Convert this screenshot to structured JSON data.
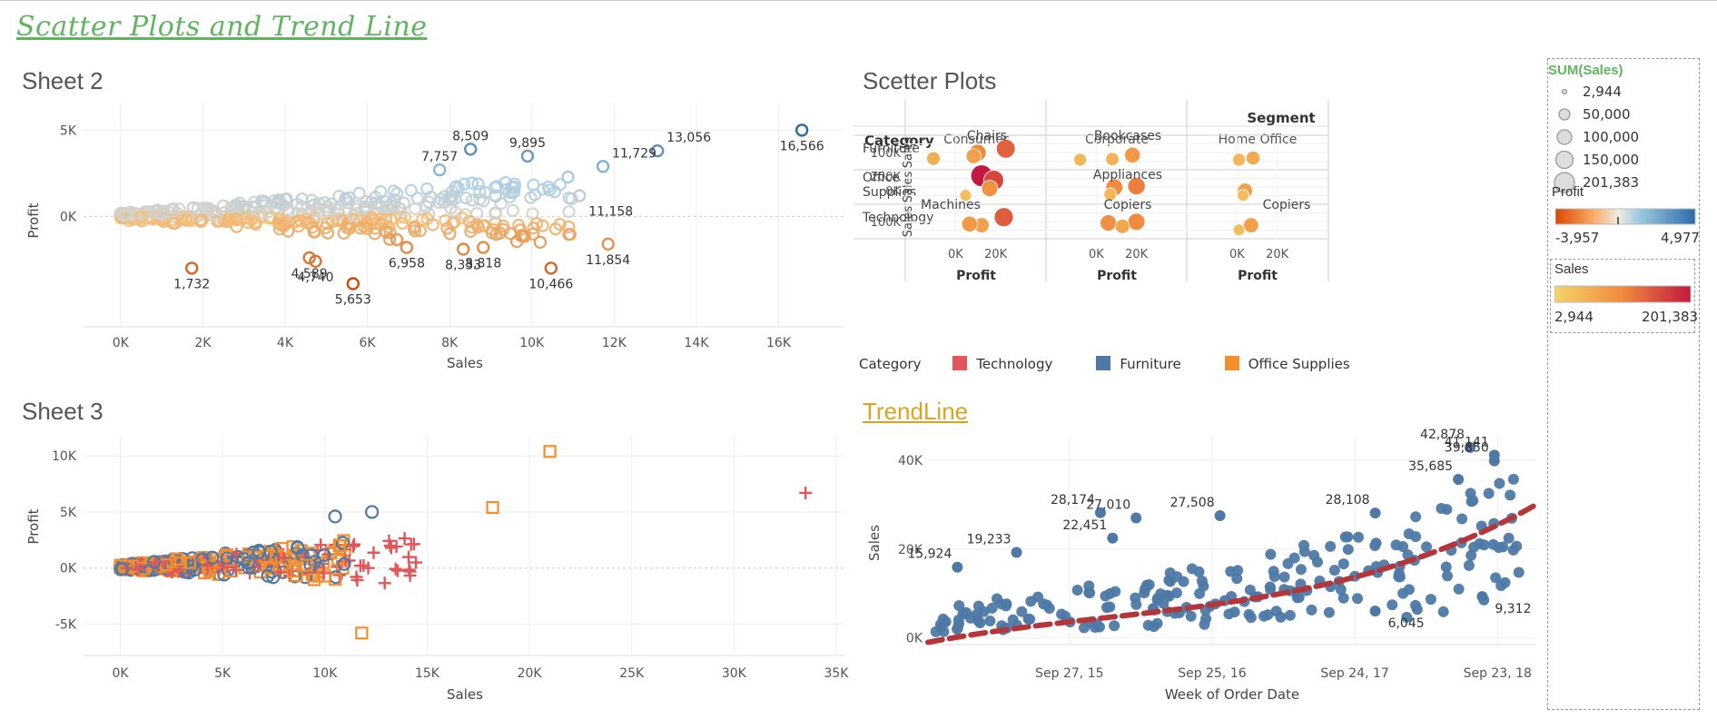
{
  "dashboard_title": "Scatter Plots and Trend Line",
  "sheet2": {
    "title": "Sheet 2",
    "xlabel": "Sales",
    "ylabel": "Profit",
    "x_ticks": [
      "0K",
      "2K",
      "4K",
      "6K",
      "8K",
      "10K",
      "12K",
      "14K",
      "16K"
    ],
    "y_ticks": [
      "5K",
      "0K"
    ]
  },
  "sheet3": {
    "title": "Sheet 3",
    "xlabel": "Sales",
    "ylabel": "Profit",
    "x_ticks": [
      "0K",
      "5K",
      "10K",
      "15K",
      "20K",
      "25K",
      "30K",
      "35K"
    ],
    "y_ticks": [
      "10K",
      "5K",
      "0K",
      "-5K"
    ]
  },
  "scatter_plots": {
    "title": "Scetter Plots",
    "segment_header": "Segment",
    "category_header": "Category",
    "segments": [
      "Consumer",
      "Corporate",
      "Home Office"
    ],
    "categories": [
      "Furniture",
      "Office\nSupplies",
      "Technology"
    ],
    "row_axis_label": "Sales",
    "col_axis_label": "Profit",
    "x_ticks": [
      "0K",
      "20K"
    ],
    "row_ticks": [
      [
        "100K"
      ],
      [
        "200K",
        "0K"
      ],
      [
        "100K"
      ]
    ],
    "annotations": [
      {
        "row": 0,
        "col": 0,
        "text": "Chairs"
      },
      {
        "row": 0,
        "col": 1,
        "text": "Bookcases"
      },
      {
        "row": 1,
        "col": 1,
        "text": "Appliances"
      },
      {
        "row": 2,
        "col": 0,
        "text": "Machines"
      },
      {
        "row": 2,
        "col": 1,
        "text": "Copiers"
      },
      {
        "row": 2,
        "col": 2,
        "text": "Copiers"
      }
    ]
  },
  "category_legend": {
    "title": "Category",
    "items": [
      {
        "label": "Technology",
        "color": "#e15759"
      },
      {
        "label": "Furniture",
        "color": "#4e79a7"
      },
      {
        "label": "Office Supplies",
        "color": "#f28e2b"
      }
    ]
  },
  "trendline": {
    "title": "TrendLine",
    "xlabel": "Week of Order Date",
    "ylabel": "Sales",
    "x_ticks": [
      "Sep 27, 15",
      "Sep 25, 16",
      "Sep 24, 17",
      "Sep 23, 18"
    ],
    "y_ticks": [
      "40K",
      "20K",
      "0K"
    ]
  },
  "legend_panel": {
    "size_title": "SUM(Sales)",
    "size_items": [
      "2,944",
      "50,000",
      "100,000",
      "150,000",
      "201,383"
    ],
    "profit_title": "Profit",
    "profit_min": "-3,957",
    "profit_max": "4,977",
    "sales_title": "Sales",
    "sales_min": "2,944",
    "sales_max": "201,383"
  },
  "colors": {
    "title_green": "#5fb55f",
    "trend_link": "#d9a521",
    "furniture": "#4e79a7",
    "technology": "#e15759",
    "office_supplies": "#f28e2b",
    "trend_line": "#b5363a"
  },
  "chart_data": [
    {
      "id": "sheet2",
      "type": "scatter",
      "xlabel": "Sales",
      "ylabel": "Profit",
      "xlim": [
        -900,
        17600
      ],
      "ylim": [
        -6400,
        6600
      ],
      "x_tick_values": [
        0,
        2000,
        4000,
        6000,
        8000,
        10000,
        12000,
        14000,
        16000
      ],
      "y_tick_values": [
        5000,
        0
      ],
      "color_encoding": "Profit (diverging orange to blue)",
      "labeled_points": [
        {
          "x": 16566,
          "y": 5000,
          "label": "16,566"
        },
        {
          "x": 13056,
          "y": 3800,
          "label": "13,056"
        },
        {
          "x": 11729,
          "y": 2900,
          "label": "11,729"
        },
        {
          "x": 11158,
          "y": 1200,
          "label": "11,158"
        },
        {
          "x": 9895,
          "y": 3500,
          "label": "9,895"
        },
        {
          "x": 8509,
          "y": 3900,
          "label": "8,509"
        },
        {
          "x": 7757,
          "y": 2700,
          "label": "7,757"
        },
        {
          "x": 11854,
          "y": -1600,
          "label": "11,854"
        },
        {
          "x": 8818,
          "y": -1800,
          "label": "8,818"
        },
        {
          "x": 8333,
          "y": -1900,
          "label": "8,333"
        },
        {
          "x": 6958,
          "y": -1800,
          "label": "6,958"
        },
        {
          "x": 10466,
          "y": -3000,
          "label": "10,466"
        },
        {
          "x": 5653,
          "y": -3900,
          "label": "5,653"
        },
        {
          "x": 4740,
          "y": -2600,
          "label": "4,740"
        },
        {
          "x": 4589,
          "y": -2400,
          "label": "4,589"
        },
        {
          "x": 1732,
          "y": -3000,
          "label": "1,732"
        }
      ]
    },
    {
      "id": "sheet3",
      "type": "scatter",
      "xlabel": "Sales",
      "ylabel": "Profit",
      "xlim": [
        -1800,
        35400
      ],
      "ylim": [
        -7800,
        11800
      ],
      "x_tick_values": [
        0,
        5000,
        10000,
        15000,
        20000,
        25000,
        30000,
        35000
      ],
      "y_tick_values": [
        10000,
        5000,
        0,
        -5000
      ],
      "series": [
        {
          "name": "Technology",
          "marker": "plus"
        },
        {
          "name": "Furniture",
          "marker": "circle"
        },
        {
          "name": "Office Supplies",
          "marker": "square"
        }
      ],
      "outliers": [
        {
          "category": "Office Supplies",
          "x": 21000,
          "y": 10400
        },
        {
          "category": "Technology",
          "x": 33500,
          "y": 6700
        },
        {
          "category": "Office Supplies",
          "x": 18200,
          "y": 5400
        },
        {
          "category": "Office Supplies",
          "x": 11800,
          "y": -5800
        },
        {
          "category": "Furniture",
          "x": 12300,
          "y": 5000
        },
        {
          "category": "Furniture",
          "x": 10500,
          "y": 4600
        }
      ]
    },
    {
      "id": "scatter_plots",
      "type": "scatter",
      "xlabel": "Profit",
      "ylabel": "Sales",
      "size_encoding": "SUM(Sales)",
      "color_encoding": "Sales",
      "x_tick_values": [
        0,
        20000
      ],
      "points": [
        {
          "segment": "Consumer",
          "category": "Furniture",
          "x": 25000,
          "y": 135000,
          "label": "Chairs"
        },
        {
          "segment": "Consumer",
          "category": "Furniture",
          "x": 11000,
          "y": 100000
        },
        {
          "segment": "Consumer",
          "category": "Furniture",
          "x": 9000,
          "y": 70000
        },
        {
          "segment": "Consumer",
          "category": "Furniture",
          "x": -11000,
          "y": 50000
        },
        {
          "segment": "Corporate",
          "category": "Furniture",
          "x": 18000,
          "y": 80000
        },
        {
          "segment": "Corporate",
          "category": "Furniture",
          "x": 8000,
          "y": 45000,
          "label": "Bookcases"
        },
        {
          "segment": "Corporate",
          "category": "Furniture",
          "x": -8000,
          "y": 40000
        },
        {
          "segment": "Home Office",
          "category": "Furniture",
          "x": 8000,
          "y": 55000
        },
        {
          "segment": "Home Office",
          "category": "Furniture",
          "x": 1000,
          "y": 40000
        },
        {
          "segment": "Consumer",
          "category": "Office Supplies",
          "x": 13000,
          "y": 200000
        },
        {
          "segment": "Consumer",
          "category": "Office Supplies",
          "x": 19000,
          "y": 160000
        },
        {
          "segment": "Consumer",
          "category": "Office Supplies",
          "x": 17000,
          "y": 90000
        },
        {
          "segment": "Consumer",
          "category": "Office Supplies",
          "x": 5000,
          "y": 30000
        },
        {
          "segment": "Corporate",
          "category": "Office Supplies",
          "x": 20000,
          "y": 110000
        },
        {
          "segment": "Corporate",
          "category": "Office Supplies",
          "x": 9000,
          "y": 100000,
          "label": "Appliances"
        },
        {
          "segment": "Corporate",
          "category": "Office Supplies",
          "x": 7000,
          "y": 40000
        },
        {
          "segment": "Home Office",
          "category": "Office Supplies",
          "x": 4000,
          "y": 70000
        },
        {
          "segment": "Home Office",
          "category": "Office Supplies",
          "x": 3000,
          "y": 30000
        },
        {
          "segment": "Consumer",
          "category": "Technology",
          "x": 24000,
          "y": 140000,
          "label": "Machines"
        },
        {
          "segment": "Consumer",
          "category": "Technology",
          "x": 13000,
          "y": 70000
        },
        {
          "segment": "Consumer",
          "category": "Technology",
          "x": 7000,
          "y": 80000
        },
        {
          "segment": "Corporate",
          "category": "Technology",
          "x": 20000,
          "y": 100000
        },
        {
          "segment": "Corporate",
          "category": "Technology",
          "x": 6000,
          "y": 90000,
          "label": "Copiers"
        },
        {
          "segment": "Corporate",
          "category": "Technology",
          "x": 13000,
          "y": 60000
        },
        {
          "segment": "Home Office",
          "category": "Technology",
          "x": 7000,
          "y": 70000,
          "label": "Copiers"
        },
        {
          "segment": "Home Office",
          "category": "Technology",
          "x": 1000,
          "y": 30000
        }
      ]
    },
    {
      "id": "trendline",
      "type": "scatter",
      "xlabel": "Week of Order Date",
      "ylabel": "Sales",
      "ylim": [
        -1500,
        45500
      ],
      "y_tick_values": [
        40000,
        20000,
        0
      ],
      "trend": "polynomial",
      "labeled_points": [
        {
          "x": "2014-12",
          "y": 15924,
          "label": "15,924"
        },
        {
          "x": "2015-05",
          "y": 19233,
          "label": "19,233"
        },
        {
          "x": "2015-12",
          "y": 28174,
          "label": "28,174"
        },
        {
          "x": "2016-01",
          "y": 22451,
          "label": "22,451"
        },
        {
          "x": "2016-03",
          "y": 27010,
          "label": "27,010"
        },
        {
          "x": "2016-10",
          "y": 27508,
          "label": "27,508"
        },
        {
          "x": "2017-11",
          "y": 28108,
          "label": "28,108"
        },
        {
          "x": "2017-11",
          "y": 6045,
          "label": "6,045"
        },
        {
          "x": "2018-06",
          "y": 35685,
          "label": "35,685"
        },
        {
          "x": "2018-07",
          "y": 42878,
          "label": "42,878"
        },
        {
          "x": "2018-09",
          "y": 41141,
          "label": "41,141"
        },
        {
          "x": "2018-09",
          "y": 39850,
          "label": "39,850"
        },
        {
          "x": "2018-08",
          "y": 9312,
          "label": "9,312"
        }
      ]
    }
  ]
}
